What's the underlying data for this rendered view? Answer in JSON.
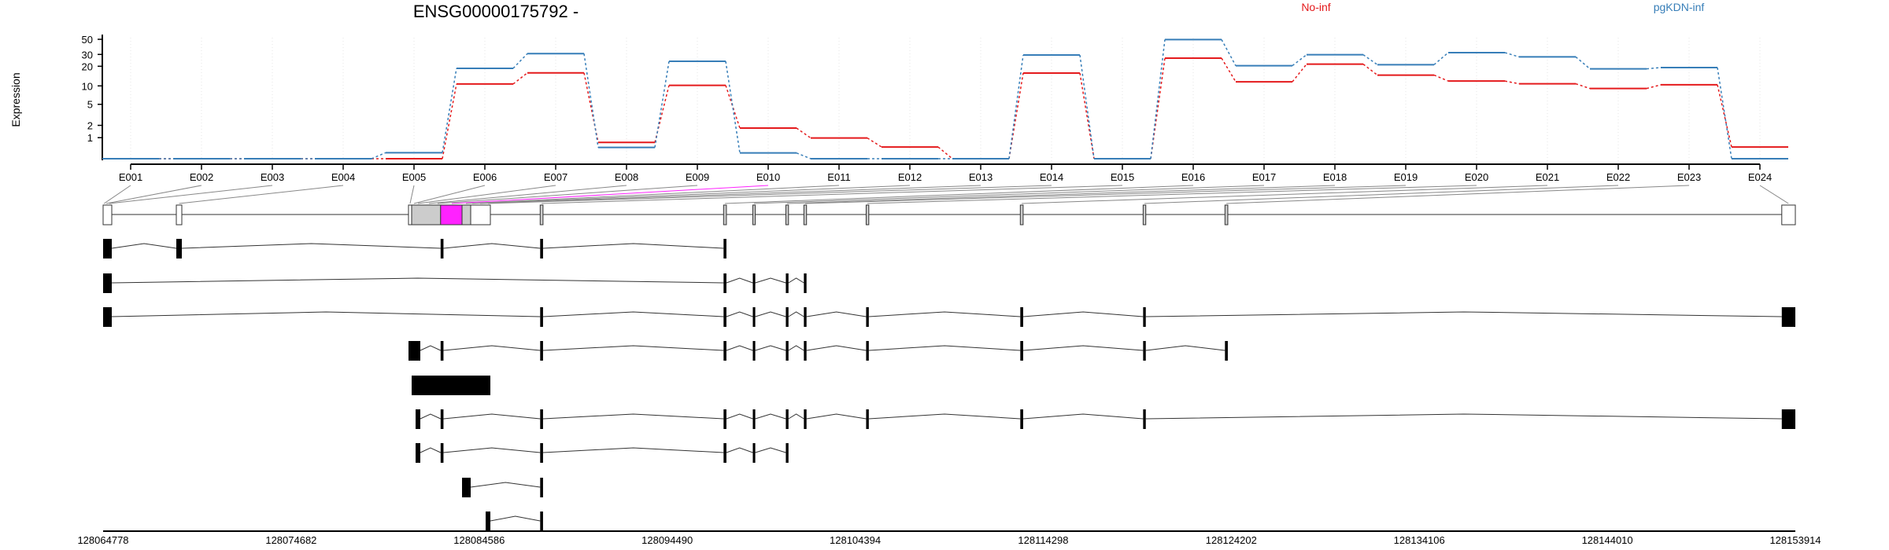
{
  "chart_data": {
    "type": "line",
    "title": "ENSG00000175792 -",
    "ylabel": "Expression",
    "xlabel": "",
    "y_scale": "log10(x+1)",
    "yticks": [
      1,
      2,
      5,
      10,
      20,
      30,
      50
    ],
    "ylim": [
      0,
      55
    ],
    "grid": "vertical dotted at exons",
    "legend_placement": "top-right",
    "categories": [
      "E001",
      "E002",
      "E003",
      "E004",
      "E005",
      "E006",
      "E007",
      "E008",
      "E009",
      "E010",
      "E011",
      "E012",
      "E013",
      "E014",
      "E015",
      "E016",
      "E017",
      "E018",
      "E019",
      "E020",
      "E021",
      "E022",
      "E023",
      "E024"
    ],
    "series": [
      {
        "name": "No-inf",
        "color": "#e41a1c",
        "values": [
          0,
          0,
          0,
          0,
          0,
          10.7,
          15.9,
          0.71,
          10.2,
          1.74,
          0.98,
          0.47,
          0,
          15.8,
          0,
          26.4,
          11.6,
          21.5,
          14.7,
          11.9,
          10.8,
          9.1,
          10.4,
          0.47
        ]
      },
      {
        "name": "pgKDN-inf",
        "color": "#377eb8",
        "values": [
          0,
          0,
          0,
          0,
          0.22,
          18.6,
          30.8,
          0.45,
          23.7,
          0.21,
          0,
          0,
          0,
          29.4,
          0,
          49.6,
          20.4,
          29.7,
          21.1,
          31.9,
          27.6,
          18.3,
          19.1,
          0
        ]
      }
    ],
    "highlight_exon": "E010",
    "highlight_color": "#ff22ff",
    "exon_targets": [
      128064830,
      128064950,
      128065100,
      128068780,
      128080947,
      128081155,
      128081362,
      128081942,
      128082398,
      128083145,
      128083891,
      128084223,
      128084637,
      128085052,
      128087875,
      128097535,
      128099065,
      128100805,
      128101760,
      128105035,
      128113165,
      128119630,
      128123945,
      128153550
    ],
    "genomic_axis": {
      "range": [
        128064778,
        128153914
      ],
      "ticks": [
        "128064778",
        "128074682",
        "128084586",
        "128094490",
        "128104394",
        "128114298",
        "128124202",
        "128134106",
        "128144010",
        "128153914"
      ]
    },
    "flattened_model": [
      {
        "s": 128064778,
        "e": 128065234,
        "fill": "#ffffff"
      },
      {
        "s": 128068634,
        "e": 128068924,
        "fill": "#ffffff"
      },
      {
        "s": 128080864,
        "e": 128081030,
        "fill": "#ffffff"
      },
      {
        "s": 128081030,
        "e": 128082556,
        "fill": "#cccccc"
      },
      {
        "s": 128082556,
        "e": 128083684,
        "fill": "#ff22ff"
      },
      {
        "s": 128083684,
        "e": 128084140,
        "fill": "#cccccc"
      },
      {
        "s": 128084140,
        "e": 128085176,
        "fill": "#ffffff"
      },
      {
        "s": 128087800,
        "e": 128087950,
        "fill": "#cccccc"
      },
      {
        "s": 128097460,
        "e": 128097610,
        "fill": "#cccccc"
      },
      {
        "s": 128099000,
        "e": 128099130,
        "fill": "#cccccc"
      },
      {
        "s": 128100740,
        "e": 128100880,
        "fill": "#cccccc"
      },
      {
        "s": 128101690,
        "e": 128101830,
        "fill": "#cccccc"
      },
      {
        "s": 128104970,
        "e": 128105110,
        "fill": "#cccccc"
      },
      {
        "s": 128113090,
        "e": 128113240,
        "fill": "#cccccc"
      },
      {
        "s": 128119560,
        "e": 128119700,
        "fill": "#cccccc"
      },
      {
        "s": 128123870,
        "e": 128124020,
        "fill": "#cccccc"
      },
      {
        "s": 128153200,
        "e": 128153914,
        "fill": "#ffffff"
      }
    ],
    "transcripts": [
      [
        [
          128064778,
          128065234
        ],
        [
          128068634,
          128068924
        ],
        [
          128082556,
          128082706
        ],
        [
          128087800,
          128087950
        ],
        [
          128097460,
          128097610
        ]
      ],
      [
        [
          128064778,
          128065234
        ],
        [
          128097460,
          128097610
        ],
        [
          128099000,
          128099130
        ],
        [
          128100740,
          128100880
        ],
        [
          128101690,
          128101830
        ]
      ],
      [
        [
          128064778,
          128065234
        ],
        [
          128087800,
          128087950
        ],
        [
          128097460,
          128097610
        ],
        [
          128099000,
          128099130
        ],
        [
          128100740,
          128100880
        ],
        [
          128101690,
          128101830
        ],
        [
          128104970,
          128105110
        ],
        [
          128113090,
          128113240
        ],
        [
          128119560,
          128119700
        ],
        [
          128153200,
          128153914
        ]
      ],
      [
        [
          128080864,
          128081486
        ],
        [
          128082556,
          128082706
        ],
        [
          128087800,
          128087950
        ],
        [
          128097460,
          128097610
        ],
        [
          128099000,
          128099130
        ],
        [
          128100740,
          128100880
        ],
        [
          128101690,
          128101830
        ],
        [
          128104970,
          128105110
        ],
        [
          128113090,
          128113240
        ],
        [
          128119560,
          128119700
        ],
        [
          128123870,
          128124020
        ]
      ],
      [
        [
          128081030,
          128085176
        ]
      ],
      [
        [
          128081238,
          128081486
        ],
        [
          128082556,
          128082706
        ],
        [
          128087800,
          128087950
        ],
        [
          128097460,
          128097610
        ],
        [
          128099000,
          128099130
        ],
        [
          128100740,
          128100880
        ],
        [
          128101690,
          128101830
        ],
        [
          128104970,
          128105110
        ],
        [
          128113090,
          128113240
        ],
        [
          128119560,
          128119700
        ],
        [
          128153200,
          128153914
        ]
      ],
      [
        [
          128081238,
          128081486
        ],
        [
          128082556,
          128082706
        ],
        [
          128087800,
          128087950
        ],
        [
          128097460,
          128097610
        ],
        [
          128099000,
          128099130
        ],
        [
          128100740,
          128100880
        ]
      ],
      [
        [
          128083684,
          128084140
        ],
        [
          128087800,
          128087950
        ]
      ],
      [
        [
          128084928,
          128085176
        ],
        [
          128087800,
          128087950
        ]
      ]
    ]
  }
}
